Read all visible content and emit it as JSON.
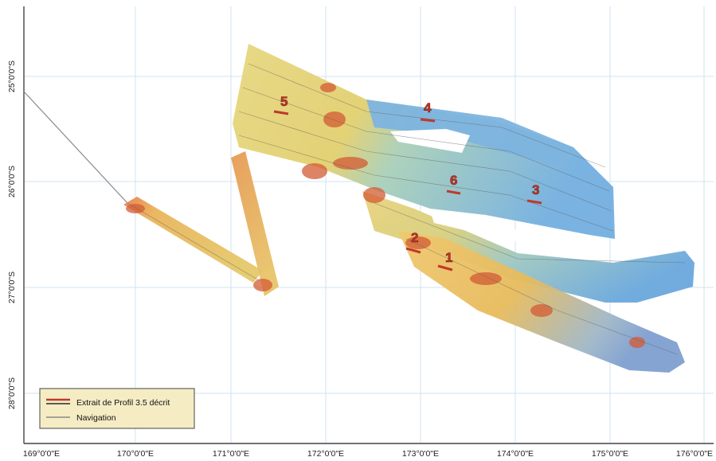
{
  "map": {
    "lon_ticks": [
      "169°0'0\"E",
      "170°0'0\"E",
      "171°0'0\"E",
      "172°0'0\"E",
      "173°0'0\"E",
      "174°0'0\"E",
      "175°0'0\"E",
      "176°0'0\"E"
    ],
    "lat_ticks": [
      "25°0'0\"S",
      "26°0'0\"S",
      "27°0'0\"S",
      "28°0'0\"S"
    ],
    "profiles": [
      "1",
      "2",
      "3",
      "4",
      "5",
      "6"
    ],
    "legend": {
      "items": [
        {
          "label": "Extrait de Profil 3.5 décrit",
          "symbol": "red-double-line",
          "color": "#c0392b"
        },
        {
          "label": "Navigation",
          "symbol": "gray-line",
          "color": "#8a8a8a"
        }
      ]
    },
    "colors": {
      "grid": "#cfe3f2",
      "shallow": "#c0392b",
      "mid": "#e8c46a",
      "deep": "#6fa8dc",
      "legend_bg": "#f5ecc4"
    }
  }
}
